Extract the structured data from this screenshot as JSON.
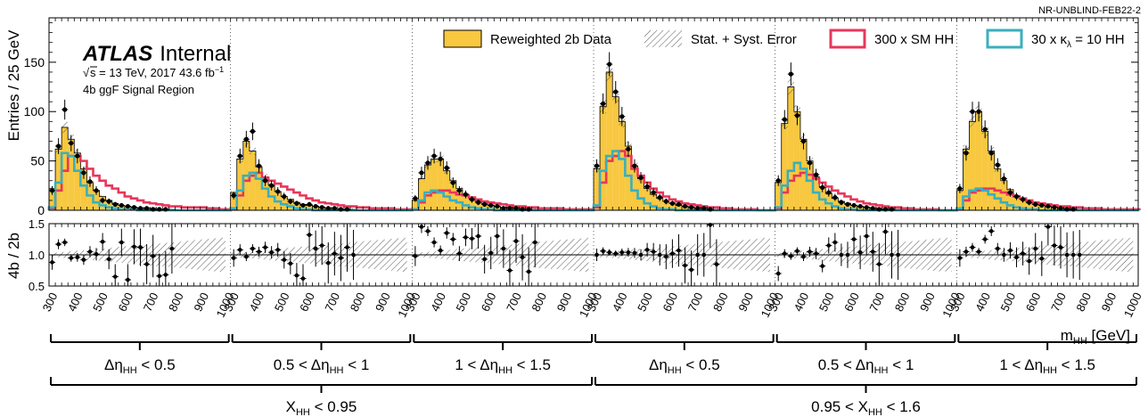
{
  "tag": "NR-UNBLIND-FEB22-2",
  "atlas": {
    "brand": "ATLAS",
    "label": "Internal",
    "energy": "s = 13 TeV, 2017 43.6 fb",
    "energy_sup": "−1",
    "region": "4b ggF Signal Region"
  },
  "legend": {
    "data": "Reweighted 2b Data",
    "error": "Stat. + Syst. Error",
    "sm": "300 x SM HH",
    "kl_pre": "30 x κ",
    "kl_sub": "λ",
    "kl_post": " = 10 HH"
  },
  "xlabel": {
    "main": "m",
    "sub": "HH",
    "unit": " [GeV]"
  },
  "eta_labels": [
    {
      "pre": "Δη",
      "sub": "HH",
      "post": " < 0.5"
    },
    {
      "pre": "0.5 < Δη",
      "sub": "HH",
      "post": " < 1"
    },
    {
      "pre": "1 < Δη",
      "sub": "HH",
      "post": " < 1.5"
    },
    {
      "pre": "Δη",
      "sub": "HH",
      "post": " < 0.5"
    },
    {
      "pre": "0.5 < Δη",
      "sub": "HH",
      "post": " < 1"
    },
    {
      "pre": "1 < Δη",
      "sub": "HH",
      "post": " < 1.5"
    }
  ],
  "x_labels": [
    {
      "pre": "X",
      "sub": "HH",
      "post": " < 0.95"
    },
    {
      "pre": "0.95 < X",
      "sub": "HH",
      "post": " < 1.6"
    }
  ],
  "colors": {
    "background": "#f7c840",
    "sm": "#e8365a",
    "kl": "#3aafbd",
    "data": "#000000"
  },
  "chart_data": {
    "type": "bar",
    "ylabel": "Entries / 25 GeV",
    "ratio_ylabel": "4b / 2b",
    "ylim": [
      0,
      195
    ],
    "ratio_ylim": [
      0.5,
      1.5
    ],
    "yticks": [
      0,
      50,
      100,
      150
    ],
    "ratio_yticks": [
      0.5,
      1.0,
      1.5
    ],
    "ratio_yticklabels": [
      "0.5",
      "1.0",
      "1.5"
    ],
    "xlim": [
      280,
      1000
    ],
    "xticks": [
      300,
      400,
      500,
      600,
      700,
      800,
      900,
      1000
    ],
    "bin_width": 25,
    "panels": [
      {
        "background": [
          22,
          62,
          84,
          72,
          58,
          42,
          28,
          20,
          14,
          10,
          7,
          5,
          4,
          3,
          2,
          2,
          2,
          1,
          1,
          1,
          0,
          0,
          0,
          0,
          0,
          0,
          0,
          0,
          0
        ],
        "data": [
          20,
          65,
          102,
          68,
          55,
          38,
          29,
          20,
          10,
          9,
          6,
          5,
          4,
          3,
          2,
          2,
          1,
          1,
          1,
          0,
          0,
          0,
          0,
          0,
          0,
          0,
          0,
          0,
          0
        ],
        "sm": [
          2,
          20,
          40,
          55,
          55,
          50,
          42,
          35,
          30,
          25,
          22,
          18,
          14,
          12,
          10,
          8,
          7,
          6,
          5,
          4,
          4,
          3,
          3,
          3,
          3,
          2,
          2,
          1,
          1
        ],
        "kl": [
          3,
          28,
          58,
          55,
          40,
          25,
          15,
          8,
          5,
          3,
          2,
          1,
          1,
          1,
          0,
          0,
          0,
          0,
          0,
          0,
          0,
          0,
          0,
          0,
          0,
          0,
          0,
          0,
          0
        ],
        "ratio": [
          0.88,
          1.17,
          1.2,
          0.95,
          0.96,
          0.92,
          1.05,
          1.01,
          1.21,
          0.93,
          0.65,
          1.2,
          0.6,
          1.13,
          1.12,
          0.85,
          0.98,
          0.66,
          0.68,
          1.1,
          1.0,
          1.0,
          1.0,
          1.0,
          1.0,
          1.0,
          1.0,
          1.0,
          1.0
        ],
        "ratio_err": [
          0.12,
          0.08,
          0.06,
          0.06,
          0.07,
          0.08,
          0.09,
          0.1,
          0.14,
          0.16,
          0.2,
          0.22,
          0.25,
          0.28,
          0.3,
          0.32,
          0.34,
          0.36,
          0.38,
          0.4,
          0.4,
          0.4,
          0.4,
          0.4,
          0.4,
          0.4,
          0.4,
          0.4,
          0.4
        ]
      },
      {
        "background": [
          18,
          52,
          70,
          60,
          44,
          34,
          26,
          19,
          14,
          11,
          8,
          6,
          5,
          4,
          3,
          2,
          2,
          1,
          1,
          1,
          0,
          0,
          0,
          0,
          0,
          0,
          0,
          0,
          0
        ],
        "data": [
          15,
          55,
          72,
          80,
          45,
          30,
          25,
          19,
          14,
          9,
          7,
          5,
          6,
          4,
          3,
          2,
          2,
          1,
          1,
          0,
          0,
          0,
          0,
          0,
          0,
          0,
          0,
          0,
          0
        ],
        "sm": [
          1,
          15,
          30,
          35,
          38,
          33,
          30,
          27,
          24,
          21,
          18,
          15,
          12,
          10,
          8,
          7,
          6,
          5,
          4,
          4,
          3,
          3,
          2,
          2,
          2,
          2,
          1,
          1,
          1
        ],
        "kl": [
          2,
          20,
          35,
          38,
          32,
          22,
          14,
          9,
          6,
          4,
          2,
          1,
          1,
          0,
          0,
          0,
          0,
          0,
          0,
          0,
          0,
          0,
          0,
          0,
          0,
          0,
          0,
          0,
          0
        ],
        "ratio": [
          0.95,
          1.08,
          0.97,
          1.1,
          1.05,
          1.12,
          1.04,
          1.08,
          0.92,
          0.86,
          0.67,
          0.62,
          1.32,
          1.1,
          1.15,
          0.87,
          1.02,
          0.95,
          1.12,
          1.0,
          1.0,
          1.0,
          1.0,
          1.0,
          1.0,
          1.0,
          1.0,
          1.0,
          1.0
        ],
        "ratio_err": [
          0.14,
          0.09,
          0.07,
          0.07,
          0.08,
          0.09,
          0.1,
          0.11,
          0.14,
          0.17,
          0.2,
          0.23,
          0.26,
          0.29,
          0.31,
          0.33,
          0.35,
          0.37,
          0.39,
          0.4,
          0.4,
          0.4,
          0.4,
          0.4,
          0.4,
          0.4,
          0.4,
          0.4,
          0.4
        ]
      },
      {
        "background": [
          10,
          32,
          46,
          52,
          52,
          40,
          30,
          22,
          16,
          12,
          9,
          7,
          5,
          4,
          3,
          3,
          2,
          2,
          1,
          1,
          0,
          0,
          0,
          0,
          0,
          0,
          0,
          0,
          0
        ],
        "data": [
          12,
          38,
          48,
          55,
          52,
          43,
          28,
          20,
          16,
          11,
          8,
          6,
          5,
          4,
          2,
          2,
          2,
          1,
          1,
          0,
          0,
          0,
          0,
          0,
          0,
          0,
          0,
          0,
          0
        ],
        "sm": [
          1,
          8,
          15,
          18,
          20,
          20,
          18,
          16,
          15,
          13,
          11,
          9,
          8,
          7,
          6,
          5,
          4,
          4,
          3,
          3,
          2,
          2,
          2,
          2,
          1,
          1,
          1,
          1,
          1
        ],
        "kl": [
          1,
          10,
          18,
          20,
          18,
          14,
          10,
          8,
          5,
          3,
          2,
          1,
          1,
          0,
          0,
          0,
          0,
          0,
          0,
          0,
          0,
          0,
          0,
          0,
          0,
          0,
          0,
          0,
          0
        ],
        "ratio": [
          0.98,
          1.45,
          1.38,
          1.2,
          1.07,
          1.35,
          1.25,
          1.02,
          1.28,
          1.26,
          1.3,
          0.93,
          1.03,
          1.3,
          1.1,
          0.75,
          1.22,
          0.96,
          0.73,
          1.2,
          1.0,
          1.0,
          1.0,
          1.0,
          1.0,
          1.0,
          1.0,
          1.0,
          1.0
        ],
        "ratio_err": [
          0.16,
          0.1,
          0.08,
          0.08,
          0.08,
          0.09,
          0.1,
          0.12,
          0.14,
          0.17,
          0.2,
          0.23,
          0.26,
          0.29,
          0.31,
          0.33,
          0.35,
          0.37,
          0.39,
          0.4,
          0.4,
          0.4,
          0.4,
          0.4,
          0.4,
          0.4,
          0.4,
          0.4,
          0.4
        ]
      },
      {
        "background": [
          42,
          105,
          140,
          115,
          90,
          65,
          45,
          32,
          22,
          16,
          12,
          9,
          7,
          5,
          4,
          3,
          2,
          2,
          1,
          1,
          0,
          0,
          0,
          0,
          0,
          0,
          0,
          0,
          0
        ],
        "data": [
          45,
          108,
          148,
          120,
          95,
          62,
          45,
          33,
          24,
          18,
          13,
          9,
          7,
          6,
          4,
          3,
          2,
          2,
          1,
          0,
          0,
          0,
          0,
          0,
          0,
          0,
          0,
          0,
          0
        ],
        "sm": [
          3,
          28,
          50,
          55,
          60,
          55,
          42,
          35,
          28,
          22,
          18,
          14,
          11,
          9,
          7,
          6,
          5,
          4,
          3,
          3,
          2,
          2,
          1,
          1,
          1,
          1,
          0,
          0,
          0
        ],
        "kl": [
          5,
          40,
          55,
          60,
          52,
          35,
          20,
          12,
          7,
          4,
          2,
          1,
          1,
          0,
          0,
          0,
          0,
          0,
          0,
          0,
          0,
          0,
          0,
          0,
          0,
          0,
          0,
          0,
          0
        ],
        "ratio": [
          1.0,
          1.06,
          1.04,
          1.02,
          1.04,
          1.04,
          1.03,
          1.0,
          1.08,
          1.05,
          1.0,
          0.97,
          1.02,
          1.07,
          0.83,
          0.76,
          1.0,
          1.0,
          1.48,
          0.85,
          1.0,
          1.0,
          1.0,
          1.0,
          1.0,
          1.0,
          1.0,
          1.0,
          1.0
        ],
        "ratio_err": [
          0.1,
          0.06,
          0.05,
          0.05,
          0.06,
          0.07,
          0.08,
          0.09,
          0.11,
          0.14,
          0.17,
          0.2,
          0.23,
          0.26,
          0.29,
          0.31,
          0.33,
          0.35,
          0.37,
          0.4,
          0.4,
          0.4,
          0.4,
          0.4,
          0.4,
          0.4,
          0.4,
          0.4,
          0.4
        ]
      },
      {
        "background": [
          28,
          88,
          125,
          100,
          72,
          50,
          34,
          24,
          17,
          12,
          9,
          7,
          5,
          4,
          3,
          2,
          2,
          1,
          1,
          1,
          0,
          0,
          0,
          0,
          0,
          0,
          0,
          0,
          0
        ],
        "data": [
          30,
          92,
          138,
          96,
          70,
          48,
          36,
          23,
          18,
          13,
          8,
          6,
          5,
          4,
          3,
          2,
          1,
          1,
          1,
          0,
          0,
          0,
          0,
          0,
          0,
          0,
          0,
          0,
          0
        ],
        "sm": [
          2,
          18,
          30,
          35,
          38,
          36,
          32,
          28,
          24,
          20,
          17,
          14,
          11,
          9,
          7,
          6,
          5,
          4,
          3,
          3,
          2,
          2,
          1,
          1,
          1,
          1,
          0,
          0,
          0
        ],
        "kl": [
          3,
          25,
          40,
          48,
          42,
          30,
          18,
          11,
          7,
          4,
          2,
          1,
          1,
          0,
          0,
          0,
          0,
          0,
          0,
          0,
          0,
          0,
          0,
          0,
          0,
          0,
          0,
          0,
          0
        ],
        "ratio": [
          0.7,
          1.02,
          0.98,
          1.06,
          0.97,
          1.05,
          1.02,
          0.82,
          1.15,
          1.2,
          1.0,
          1.0,
          1.25,
          1.04,
          1.3,
          1.05,
          0.85,
          1.37,
          1.0,
          1.0,
          1.0,
          1.0,
          1.0,
          1.0,
          1.0,
          1.0,
          1.0,
          1.0,
          1.0
        ],
        "ratio_err": [
          0.12,
          0.07,
          0.06,
          0.06,
          0.07,
          0.08,
          0.09,
          0.1,
          0.13,
          0.15,
          0.18,
          0.21,
          0.24,
          0.27,
          0.3,
          0.32,
          0.34,
          0.36,
          0.38,
          0.4,
          0.4,
          0.4,
          0.4,
          0.4,
          0.4,
          0.4,
          0.4,
          0.4,
          0.4
        ]
      },
      {
        "background": [
          20,
          62,
          90,
          100,
          80,
          60,
          42,
          30,
          21,
          15,
          11,
          8,
          6,
          5,
          4,
          3,
          2,
          2,
          1,
          1,
          0,
          0,
          0,
          0,
          0,
          0,
          0,
          0,
          0
        ],
        "data": [
          22,
          58,
          100,
          100,
          82,
          58,
          46,
          32,
          18,
          14,
          11,
          8,
          6,
          5,
          4,
          3,
          2,
          1,
          1,
          0,
          0,
          0,
          0,
          0,
          0,
          0,
          0,
          0,
          0
        ],
        "sm": [
          1,
          10,
          18,
          20,
          22,
          22,
          20,
          18,
          16,
          14,
          12,
          10,
          8,
          7,
          6,
          5,
          4,
          4,
          3,
          3,
          2,
          2,
          2,
          1,
          1,
          1,
          1,
          1,
          1
        ],
        "kl": [
          2,
          14,
          20,
          22,
          20,
          16,
          12,
          8,
          5,
          3,
          2,
          1,
          1,
          0,
          0,
          0,
          0,
          0,
          0,
          0,
          0,
          0,
          0,
          0,
          0,
          0,
          0,
          0,
          0
        ],
        "ratio": [
          0.95,
          1.05,
          1.12,
          1.05,
          1.25,
          1.38,
          1.1,
          1.0,
          1.07,
          0.96,
          1.02,
          0.9,
          1.1,
          0.94,
          1.45,
          1.15,
          1.12,
          1.0,
          1.0,
          1.0,
          1.0,
          1.0,
          1.0,
          1.0,
          1.0,
          1.0,
          1.0,
          1.0,
          1.0
        ],
        "ratio_err": [
          0.14,
          0.08,
          0.07,
          0.06,
          0.07,
          0.08,
          0.09,
          0.11,
          0.13,
          0.16,
          0.19,
          0.22,
          0.25,
          0.28,
          0.3,
          0.32,
          0.34,
          0.36,
          0.38,
          0.4,
          0.4,
          0.4,
          0.4,
          0.4,
          0.4,
          0.4,
          0.4,
          0.4,
          0.4
        ]
      }
    ]
  }
}
